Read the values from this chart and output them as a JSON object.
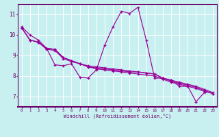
{
  "xlabel": "Windchill (Refroidissement éolien,°C)",
  "background_color": "#c8f0f0",
  "plot_bg_color": "#c8f0f0",
  "axis_bar_color": "#6a006a",
  "line_color": "#990099",
  "grid_color": "#ffffff",
  "xlim": [
    -0.5,
    23.5
  ],
  "ylim": [
    6.5,
    11.5
  ],
  "xticks": [
    0,
    1,
    2,
    3,
    4,
    5,
    6,
    7,
    8,
    9,
    10,
    11,
    12,
    13,
    14,
    15,
    16,
    17,
    18,
    19,
    20,
    21,
    22,
    23
  ],
  "yticks": [
    7,
    8,
    9,
    10,
    11
  ],
  "series0": [
    10.4,
    10.0,
    9.75,
    9.35,
    8.55,
    8.5,
    8.6,
    7.95,
    7.9,
    8.3,
    9.5,
    10.4,
    11.15,
    11.05,
    11.35,
    9.75,
    7.9,
    7.9,
    7.8,
    7.5,
    7.5,
    6.75,
    7.2
  ],
  "series1": [
    10.35,
    9.75,
    9.65,
    9.3,
    9.25,
    8.85,
    8.7,
    8.6,
    8.45,
    8.35,
    8.3,
    8.25,
    8.2,
    8.15,
    8.1,
    8.05,
    8.0,
    7.85,
    7.7,
    7.6,
    7.5,
    7.4,
    7.25,
    7.15
  ],
  "series2": [
    10.35,
    9.75,
    9.65,
    9.35,
    9.3,
    8.9,
    8.75,
    8.6,
    8.45,
    8.4,
    8.35,
    8.3,
    8.25,
    8.2,
    8.2,
    8.15,
    8.1,
    7.9,
    7.75,
    7.65,
    7.55,
    7.45,
    7.3,
    7.15
  ],
  "series3": [
    10.35,
    9.75,
    9.65,
    9.35,
    9.3,
    8.9,
    8.75,
    8.6,
    8.5,
    8.45,
    8.4,
    8.35,
    8.3,
    8.25,
    8.2,
    8.15,
    8.1,
    7.9,
    7.8,
    7.7,
    7.6,
    7.5,
    7.35,
    7.2
  ]
}
